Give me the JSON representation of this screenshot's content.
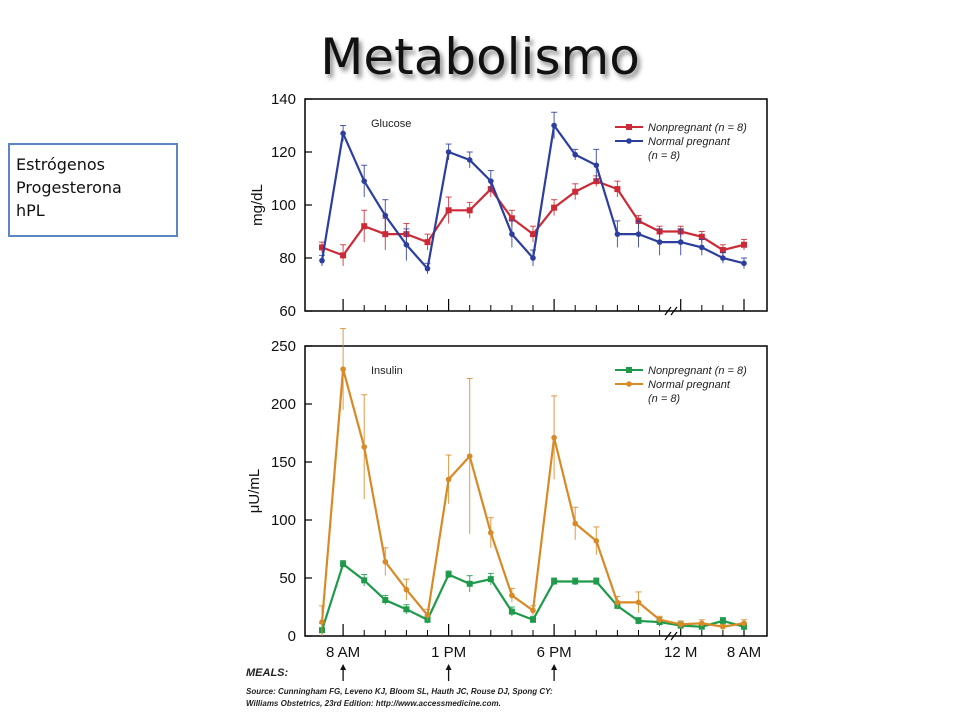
{
  "title": "Metabolismo",
  "hormones": [
    "Estrógenos",
    "Progesterona",
    "hPL"
  ],
  "x_ticks": [
    "8 AM",
    "1 PM",
    "6 PM",
    "12 M",
    "8 AM"
  ],
  "meals_label": "MEALS:",
  "source_line1": "Source: Cunningham FG, Leveno KJ, Bloom SL, Hauth JC, Rouse DJ, Spong CY:",
  "source_line2": "Williams Obstetrics, 23rd Edition: http://www.accessmedicine.com.",
  "colors": {
    "red": "#cc2a36",
    "blue": "#2c3e9e",
    "green": "#1e9a4a",
    "orange": "#d88a26"
  },
  "chart_data": [
    {
      "type": "line",
      "title": "Glucose",
      "ylabel": "mg/dL",
      "ylim": [
        60,
        140
      ],
      "yticks": [
        60,
        80,
        100,
        120,
        140
      ],
      "x_ticks": [
        "8 AM",
        "1 PM",
        "6 PM",
        "12 M",
        "8 AM"
      ],
      "series": [
        {
          "name": "Nonpregnant (n = 8)",
          "marker": "square",
          "color": "#cc2a36",
          "values": [
            84,
            81,
            92,
            89,
            89,
            86,
            98,
            98,
            106,
            95,
            89,
            99,
            105,
            109,
            106,
            94,
            90,
            90,
            88,
            83,
            85
          ]
        },
        {
          "name": "Normal pregnant (n = 8)",
          "marker": "circle",
          "color": "#2c3e9e",
          "values": [
            79,
            127,
            109,
            96,
            85,
            76,
            120,
            117,
            109,
            89,
            80,
            130,
            119,
            115,
            89,
            89,
            86,
            86,
            84,
            80,
            78
          ]
        }
      ]
    },
    {
      "type": "line",
      "title": "Insulin",
      "ylabel": "μU/mL",
      "ylim": [
        0,
        250
      ],
      "yticks": [
        0,
        50,
        100,
        150,
        200,
        250
      ],
      "x_ticks": [
        "8 AM",
        "1 PM",
        "6 PM",
        "12 M",
        "8 AM"
      ],
      "series": [
        {
          "name": "Nonpregnant (n = 8)",
          "marker": "square",
          "color": "#1e9a4a",
          "values": [
            5,
            62,
            48,
            31,
            23,
            14,
            53,
            45,
            49,
            21,
            14,
            47,
            47,
            47,
            26,
            13,
            12,
            9,
            8,
            13,
            8
          ]
        },
        {
          "name": "Normal pregnant (n = 8)",
          "marker": "circle",
          "color": "#d88a26",
          "values": [
            12,
            230,
            163,
            64,
            40,
            18,
            135,
            155,
            89,
            35,
            22,
            171,
            97,
            82,
            29,
            29,
            14,
            10,
            11,
            8,
            11
          ]
        }
      ]
    }
  ]
}
